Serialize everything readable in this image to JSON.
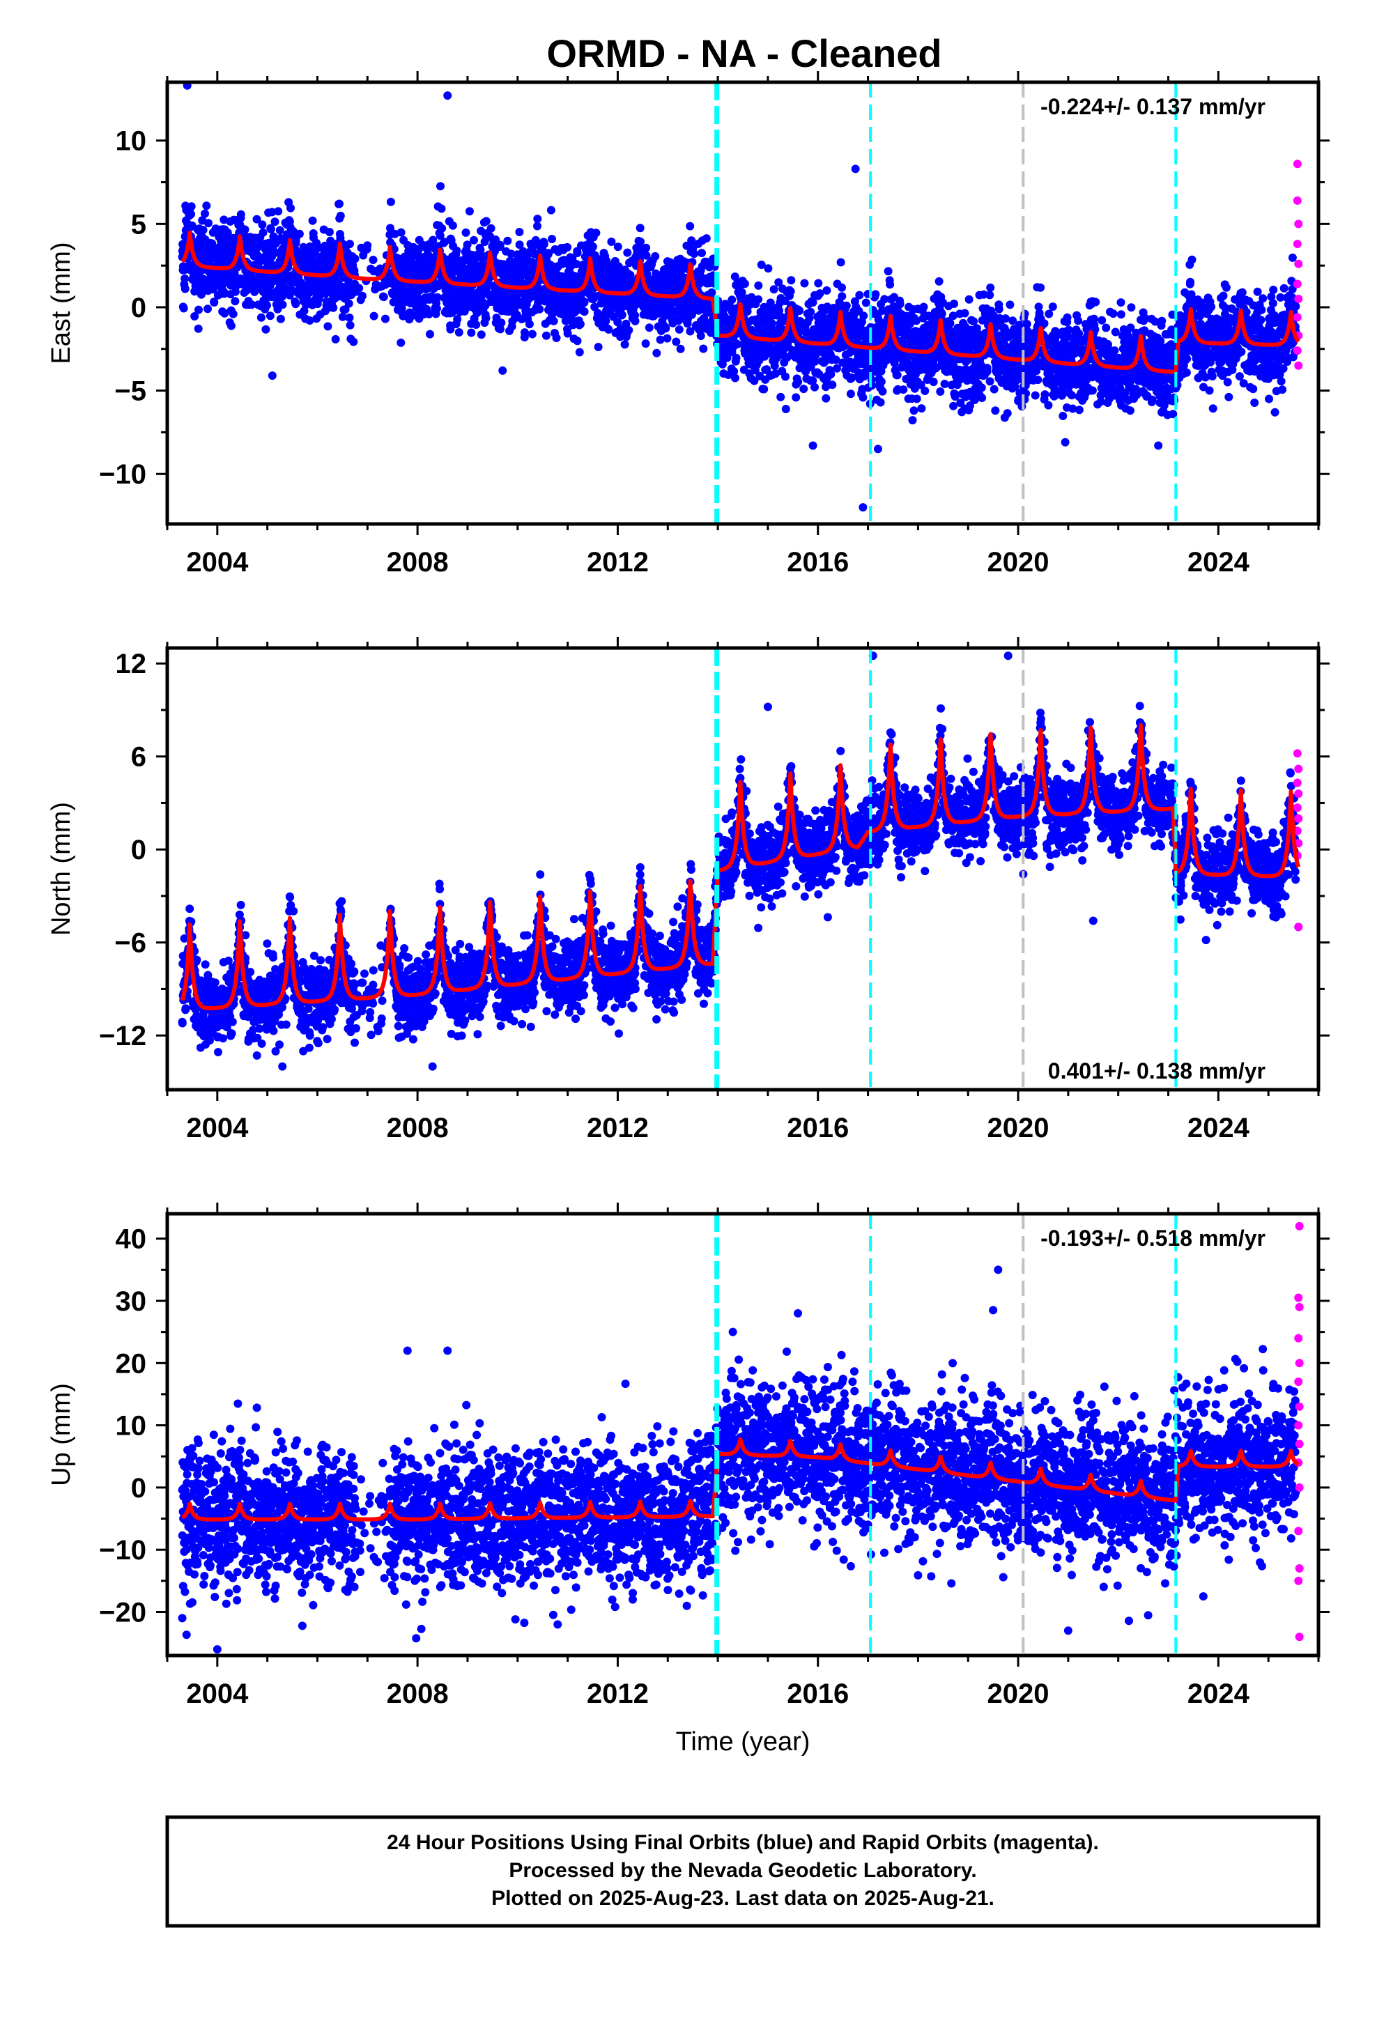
{
  "title": "ORMD  - NA - Cleaned",
  "chart_data": [
    {
      "type": "scatter",
      "panel": "east",
      "ylabel": "East (mm)",
      "xlabel": "",
      "xlim": [
        2003.0,
        2026.0
      ],
      "ylim": [
        -13,
        13.5
      ],
      "xticks": [
        2004,
        2008,
        2012,
        2016,
        2020,
        2024
      ],
      "yticks": [
        -10,
        -5,
        0,
        5,
        10
      ],
      "rate_text": "-0.224+/- 0.137 mm/yr",
      "rate_position": "top-right",
      "colors": {
        "final": "#0000ff",
        "rapid": "#ff00ff",
        "model": "#ff0000"
      },
      "model_amplitude": 2.0,
      "noise_sd": 1.3,
      "model_knots": [
        [
          2003.3,
          3.0
        ],
        [
          2007.0,
          2.2
        ],
        [
          2013.9,
          1.0
        ],
        [
          2014.0,
          -1.2
        ],
        [
          2023.15,
          -3.4
        ],
        [
          2023.2,
          -1.6
        ],
        [
          2025.6,
          -1.8
        ]
      ],
      "outliers": [
        [
          2003.4,
          13.3
        ],
        [
          2008.6,
          12.7
        ],
        [
          2016.75,
          8.3
        ],
        [
          2017.2,
          -8.5
        ],
        [
          2016.9,
          -12.0
        ],
        [
          2015.9,
          -8.3
        ],
        [
          2022.8,
          -8.3
        ],
        [
          2005.1,
          -4.1
        ],
        [
          2009.7,
          -3.8
        ]
      ],
      "rapid_points": [
        [
          2025.58,
          8.6
        ],
        [
          2025.58,
          6.4
        ],
        [
          2025.6,
          5.0
        ],
        [
          2025.58,
          3.8
        ],
        [
          2025.6,
          2.6
        ],
        [
          2025.58,
          1.4
        ],
        [
          2025.6,
          0.5
        ],
        [
          2025.58,
          -0.6
        ],
        [
          2025.6,
          -1.7
        ],
        [
          2025.58,
          -2.6
        ],
        [
          2025.6,
          -3.5
        ]
      ]
    },
    {
      "type": "scatter",
      "panel": "north",
      "ylabel": "North (mm)",
      "xlabel": "",
      "xlim": [
        2003.0,
        2026.0
      ],
      "ylim": [
        -15.5,
        13
      ],
      "xticks": [
        2004,
        2008,
        2012,
        2016,
        2020,
        2024
      ],
      "yticks": [
        -12,
        -6,
        0,
        6,
        12
      ],
      "rate_text": "0.401+/- 0.138 mm/yr",
      "rate_position": "bottom-right",
      "colors": {
        "final": "#0000ff",
        "rapid": "#ff00ff",
        "model": "#ff0000"
      },
      "model_amplitude": 5.5,
      "noise_sd": 1.2,
      "model_knots": [
        [
          2003.3,
          -9.0
        ],
        [
          2008.0,
          -8.0
        ],
        [
          2013.9,
          -6.0
        ],
        [
          2014.0,
          0.0
        ],
        [
          2016.8,
          1.5
        ],
        [
          2017.0,
          2.5
        ],
        [
          2020.0,
          3.5
        ],
        [
          2023.1,
          4.0
        ],
        [
          2023.15,
          -0.2
        ],
        [
          2025.6,
          -0.4
        ]
      ],
      "outliers": [
        [
          2005.3,
          -14.0
        ],
        [
          2008.3,
          -14.0
        ],
        [
          2015.0,
          9.2
        ],
        [
          2021.5,
          -4.6
        ],
        [
          2017.1,
          12.5
        ],
        [
          2019.8,
          12.5
        ],
        [
          2025.6,
          -5.0
        ],
        [
          2014.1,
          -0.4
        ]
      ],
      "rapid_points": [
        [
          2025.58,
          6.2
        ],
        [
          2025.6,
          5.2
        ],
        [
          2025.58,
          4.3
        ],
        [
          2025.6,
          3.6
        ],
        [
          2025.58,
          2.7
        ],
        [
          2025.6,
          2.0
        ],
        [
          2025.58,
          1.2
        ],
        [
          2025.6,
          0.4
        ],
        [
          2025.58,
          -0.4
        ],
        [
          2025.6,
          -5.0
        ]
      ]
    },
    {
      "type": "scatter",
      "panel": "up",
      "ylabel": "Up (mm)",
      "xlabel": "Time (year)",
      "xlim": [
        2003.0,
        2026.0
      ],
      "ylim": [
        -27,
        44
      ],
      "xticks": [
        2004,
        2008,
        2012,
        2016,
        2020,
        2024
      ],
      "yticks": [
        -20,
        -10,
        0,
        10,
        20,
        30,
        40
      ],
      "rate_text": "-0.193+/- 0.518 mm/yr",
      "rate_position": "top-right",
      "colors": {
        "final": "#0000ff",
        "rapid": "#ff00ff",
        "model": "#ff0000"
      },
      "model_amplitude": 2.5,
      "noise_sd": 5.5,
      "model_knots": [
        [
          2003.3,
          -4.5
        ],
        [
          2008.0,
          -4.5
        ],
        [
          2013.9,
          -4.0
        ],
        [
          2014.0,
          6.0
        ],
        [
          2016.0,
          5.5
        ],
        [
          2023.15,
          -1.5
        ],
        [
          2023.2,
          4.0
        ],
        [
          2025.6,
          4.0
        ]
      ],
      "outliers": [
        [
          2019.6,
          35.0
        ],
        [
          2019.5,
          28.5
        ],
        [
          2015.6,
          28.0
        ],
        [
          2014.3,
          25.0
        ],
        [
          2007.8,
          22.0
        ],
        [
          2008.6,
          22.0
        ],
        [
          2021.0,
          -23.0
        ],
        [
          2004.0,
          -26.0
        ],
        [
          2003.3,
          -21.0
        ],
        [
          2023.7,
          -17.5
        ],
        [
          2012.3,
          -18.0
        ],
        [
          2010.8,
          -22.0
        ]
      ],
      "rapid_points": [
        [
          2025.62,
          42.0
        ],
        [
          2025.6,
          30.5
        ],
        [
          2025.62,
          29.0
        ],
        [
          2025.6,
          24.0
        ],
        [
          2025.62,
          20.0
        ],
        [
          2025.6,
          17.0
        ],
        [
          2025.62,
          13.0
        ],
        [
          2025.6,
          10.0
        ],
        [
          2025.62,
          7.0
        ],
        [
          2025.6,
          4.0
        ],
        [
          2025.62,
          0.0
        ],
        [
          2025.6,
          -7.0
        ],
        [
          2025.62,
          -13.0
        ],
        [
          2025.6,
          -15.0
        ],
        [
          2025.62,
          -24.0
        ]
      ]
    }
  ],
  "event_lines": [
    {
      "year": 2013.98,
      "color": "#00ffff",
      "style": "thick-dashed"
    },
    {
      "year": 2017.05,
      "color": "#00ffff",
      "style": "dashed"
    },
    {
      "year": 2020.1,
      "color": "#c0c0c0",
      "style": "dashed"
    },
    {
      "year": 2023.15,
      "color": "#00ffff",
      "style": "dashed"
    }
  ],
  "footer": {
    "line1": "24 Hour Positions Using Final Orbits (blue) and Rapid Orbits (magenta).",
    "line2": "Processed by the Nevada Geodetic Laboratory.",
    "line3": "Plotted on 2025-Aug-23. Last data on 2025-Aug-21."
  }
}
